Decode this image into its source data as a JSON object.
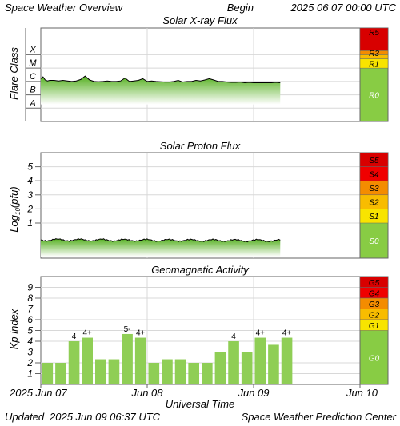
{
  "header": {
    "title": "Space Weather Overview",
    "begin_label": "Begin",
    "begin_value": "2025 06 07 00:00 UTC"
  },
  "footer": {
    "updated_label": "Updated",
    "updated_value": "2025 Jun 09 06:37 UTC",
    "credit": "Space Weather Prediction Center"
  },
  "colors": {
    "green_scale": "#88cc44",
    "fill_top": "#55b020",
    "fill_bottom": "#ffffff",
    "bar_fill": "#8fce55",
    "level_5": "#d80000",
    "level_4": "#f00000",
    "level_3": "#f48c00",
    "level_2": "#f8bc00",
    "level_1": "#f8e400",
    "grid": "#d8d8d8"
  },
  "chart_data": [
    {
      "type": "area",
      "title": "Solar X-ray Flux",
      "ylabel": "Flare Class",
      "scale": "log",
      "ylim": [
        1e-09,
        0.01
      ],
      "y_tick_labels": [
        {
          "label": "A",
          "at": 1e-08
        },
        {
          "label": "B",
          "at": 1e-07
        },
        {
          "label": "C",
          "at": 1e-06
        },
        {
          "label": "M",
          "at": 1e-05
        },
        {
          "label": "X",
          "at": 0.0001
        }
      ],
      "x_tick_labels": [
        "2025 Jun 07",
        "Jun 08",
        "Jun 09",
        "Jun 10"
      ],
      "xlim_hours": [
        0,
        72
      ],
      "series": [
        {
          "x": [
            0,
            0.5,
            1,
            1.5,
            2,
            3,
            4,
            5,
            6,
            7,
            8,
            9,
            10,
            11,
            12,
            13,
            14,
            15,
            16,
            17,
            18,
            19,
            20,
            21,
            22,
            23,
            24,
            25,
            26,
            27,
            28,
            29,
            30,
            31,
            32,
            33,
            34,
            35,
            36,
            37,
            38,
            39,
            40,
            41,
            42,
            43,
            44,
            45,
            46,
            47,
            48,
            49,
            50,
            51,
            52,
            53,
            54
          ],
          "y": [
            1.6e-06,
            2.2e-06,
            1.3e-06,
            1.1e-06,
            1.2e-06,
            1.2e-06,
            1.1e-06,
            1.2e-06,
            1.1e-06,
            1e-06,
            1.1e-06,
            1.4e-06,
            2.5e-06,
            1.3e-06,
            1e-06,
            9.5e-07,
            1e-06,
            1.1e-06,
            1e-06,
            1e-06,
            1.1e-06,
            1.8e-06,
            1e-06,
            1.1e-06,
            1.2e-06,
            1.6e-06,
            1e-06,
            1.1e-06,
            1e-06,
            9.5e-07,
            9e-07,
            9e-07,
            1e-06,
            1.2e-06,
            9e-07,
            1e-06,
            1e-06,
            1.2e-06,
            1.1e-06,
            1.3e-06,
            1.6e-06,
            1.3e-06,
            1e-06,
            1e-06,
            9e-07,
            8.5e-07,
            8.5e-07,
            9e-07,
            8e-07,
            8.5e-07,
            8e-07,
            8e-07,
            8e-07,
            8e-07,
            8e-07,
            8.5e-07,
            8e-07
          ]
        }
      ],
      "scale_labels": [
        "R5",
        "R3",
        "R1",
        "R0"
      ]
    },
    {
      "type": "area",
      "title": "Solar Proton Flux",
      "ylabel": "Log10(pfu)",
      "ylabel_main": "Log",
      "ylabel_sub": "10",
      "ylabel_tail": "(pfu)",
      "ylim": [
        -1.5,
        6
      ],
      "y_tick_labels": [
        "1",
        "2",
        "3",
        "4",
        "5"
      ],
      "x_tick_labels": [
        "2025 Jun 07",
        "Jun 08",
        "Jun 09",
        "Jun 10"
      ],
      "xlim_hours": [
        0,
        72
      ],
      "series": [
        {
          "x": [
            0,
            54
          ],
          "y": [
            -0.2,
            -0.25
          ]
        }
      ],
      "scale_labels": [
        "S5",
        "S4",
        "S3",
        "S2",
        "S1",
        "S0"
      ]
    },
    {
      "type": "bar",
      "title": "Geomagnetic Activity",
      "ylabel": "Kp index",
      "ylim": [
        0,
        10
      ],
      "y_tick_labels": [
        "1",
        "2",
        "3",
        "4",
        "5",
        "6",
        "7",
        "8",
        "9"
      ],
      "x_tick_labels": [
        "2025 Jun 07",
        "Jun 08",
        "Jun 09",
        "Jun 10"
      ],
      "xlim_hours": [
        0,
        72
      ],
      "bar_width_hours": 3,
      "values": [
        2.0,
        2.0,
        4.0,
        4.33,
        2.33,
        2.33,
        4.67,
        4.33,
        2.0,
        2.33,
        2.33,
        2.0,
        2.0,
        3.0,
        4.0,
        3.0,
        4.33,
        3.67,
        4.33
      ],
      "bar_labels": [
        "",
        "",
        "4",
        "4+",
        "",
        "",
        "5-",
        "4+",
        "",
        "",
        "",
        "",
        "",
        "",
        "4",
        "",
        "4+",
        "",
        "4+"
      ],
      "scale_labels": [
        "G5",
        "G4",
        "G3",
        "G2",
        "G1",
        "G0"
      ],
      "xlabel": "Universal Time"
    }
  ]
}
